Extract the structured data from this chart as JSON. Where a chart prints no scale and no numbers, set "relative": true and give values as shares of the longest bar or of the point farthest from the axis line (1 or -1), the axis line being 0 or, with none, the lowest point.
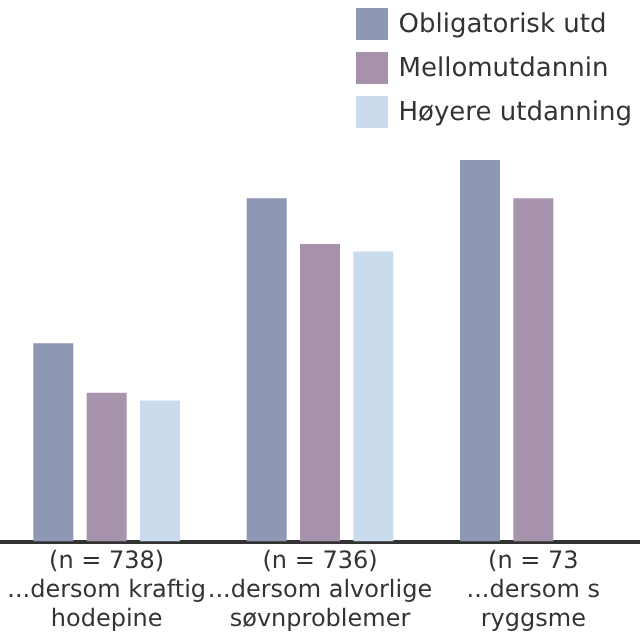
{
  "chart_data": {
    "type": "bar",
    "relative": true,
    "legend": "top right",
    "categories": [
      "(n = 738)\n...dersom kraftig\nhodepine",
      "(n = 736)\n...dersom alvorlige\nsøvnproblemer",
      "(n = 73\n...dersom s\nryggsme"
    ],
    "series": [
      {
        "name": "Obligatorisk utd",
        "color": "#8e97b3",
        "values": [
          0.52,
          0.9,
          1
        ]
      },
      {
        "name": "Mellomutdannin",
        "color": "#a893ad",
        "values": [
          0.39,
          0.78,
          0.9
        ]
      },
      {
        "name": "Høyere utdanning",
        "color": "#c9dbec",
        "values": [
          0.37,
          0.76,
          null
        ]
      }
    ]
  }
}
